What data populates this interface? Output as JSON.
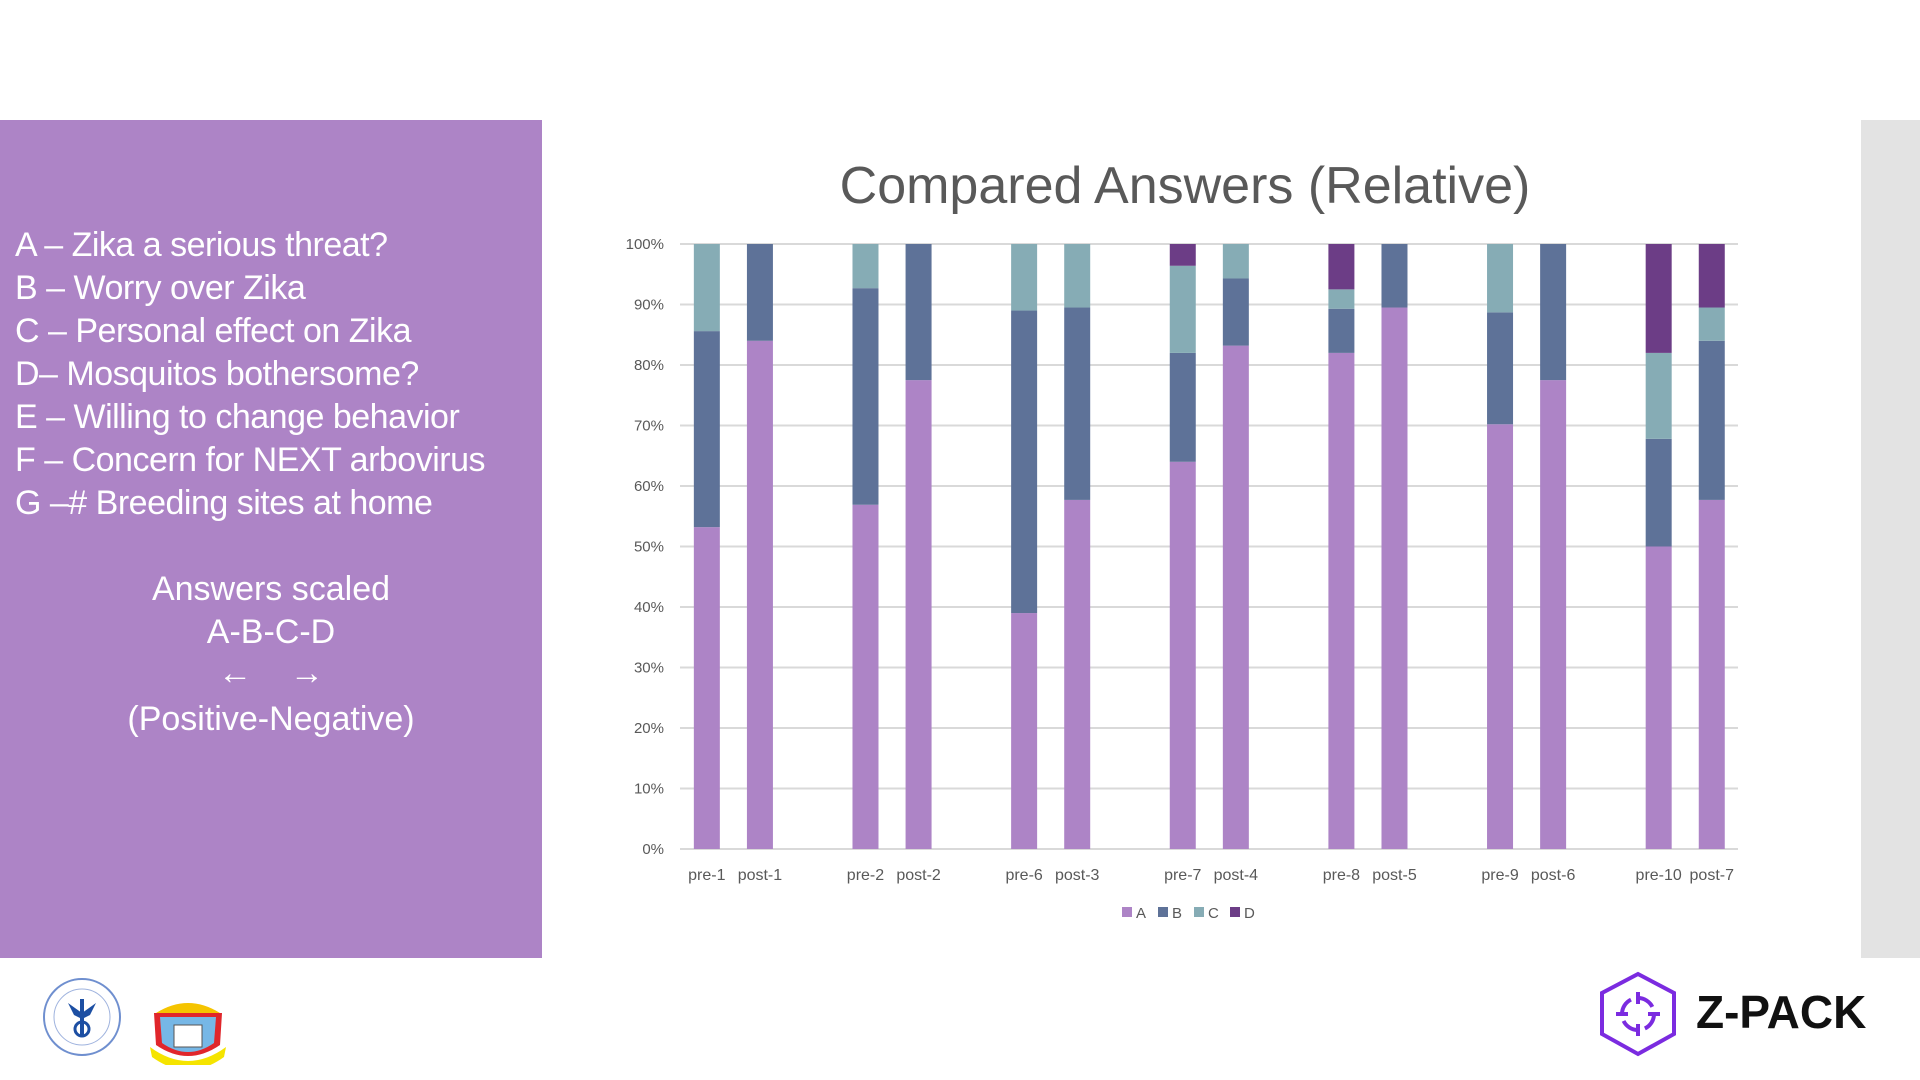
{
  "sidebar": {
    "questions": [
      "A – Zika a serious threat?",
      "B – Worry over Zika",
      "C – Personal effect on Zika",
      "D– Mosquitos bothersome?",
      "E – Willing to change behavior",
      "F – Concern for NEXT arbovirus",
      "G –# Breeding sites at home"
    ],
    "scale_title": "Answers scaled",
    "scale_letters": "A-B-C-D",
    "scale_arrows": "←    →",
    "scale_note": "(Positive-Negative)"
  },
  "logos": {
    "university": "American University of the Caribbean 1978",
    "crest": "Semper Pro Grediens",
    "brand": "Z-PACK"
  },
  "colors": {
    "panel": "#ad84c6",
    "A": "#ad84c6",
    "B": "#5e7298",
    "C": "#86acb5",
    "D": "#6c3d86",
    "grid": "#d9d9d9",
    "brand": "#7b2be0"
  },
  "chart_data": {
    "type": "bar",
    "stacked": "percent",
    "title": "Compared Answers (Relative)",
    "xlabel": "",
    "ylabel": "",
    "ylim": [
      0,
      100
    ],
    "yticks": [
      "0%",
      "10%",
      "20%",
      "30%",
      "40%",
      "50%",
      "60%",
      "70%",
      "80%",
      "90%",
      "100%"
    ],
    "grid": true,
    "legend_position": "bottom",
    "categories": [
      "pre-1",
      "post-1",
      "pre-2",
      "post-2",
      "pre-6",
      "post-3",
      "pre-7",
      "post-4",
      "pre-8",
      "post-5",
      "pre-9",
      "post-6",
      "pre-10",
      "post-7"
    ],
    "series": [
      {
        "name": "A",
        "values": [
          53.2,
          84.0,
          56.9,
          77.5,
          39.0,
          57.7,
          64.0,
          83.2,
          82.0,
          89.5,
          70.2,
          77.5,
          50.0,
          57.7
        ]
      },
      {
        "name": "B",
        "values": [
          32.4,
          16.0,
          35.8,
          22.5,
          50.0,
          31.8,
          18.0,
          11.1,
          7.3,
          10.5,
          18.5,
          22.5,
          17.8,
          26.3
        ]
      },
      {
        "name": "C",
        "values": [
          14.4,
          0,
          7.3,
          0,
          11.0,
          10.5,
          14.4,
          5.7,
          3.2,
          0,
          11.3,
          0,
          14.2,
          5.5
        ]
      },
      {
        "name": "D",
        "values": [
          0,
          0,
          0,
          0,
          0,
          0,
          3.6,
          0,
          7.5,
          0,
          0,
          0,
          18.0,
          10.5
        ]
      }
    ]
  }
}
